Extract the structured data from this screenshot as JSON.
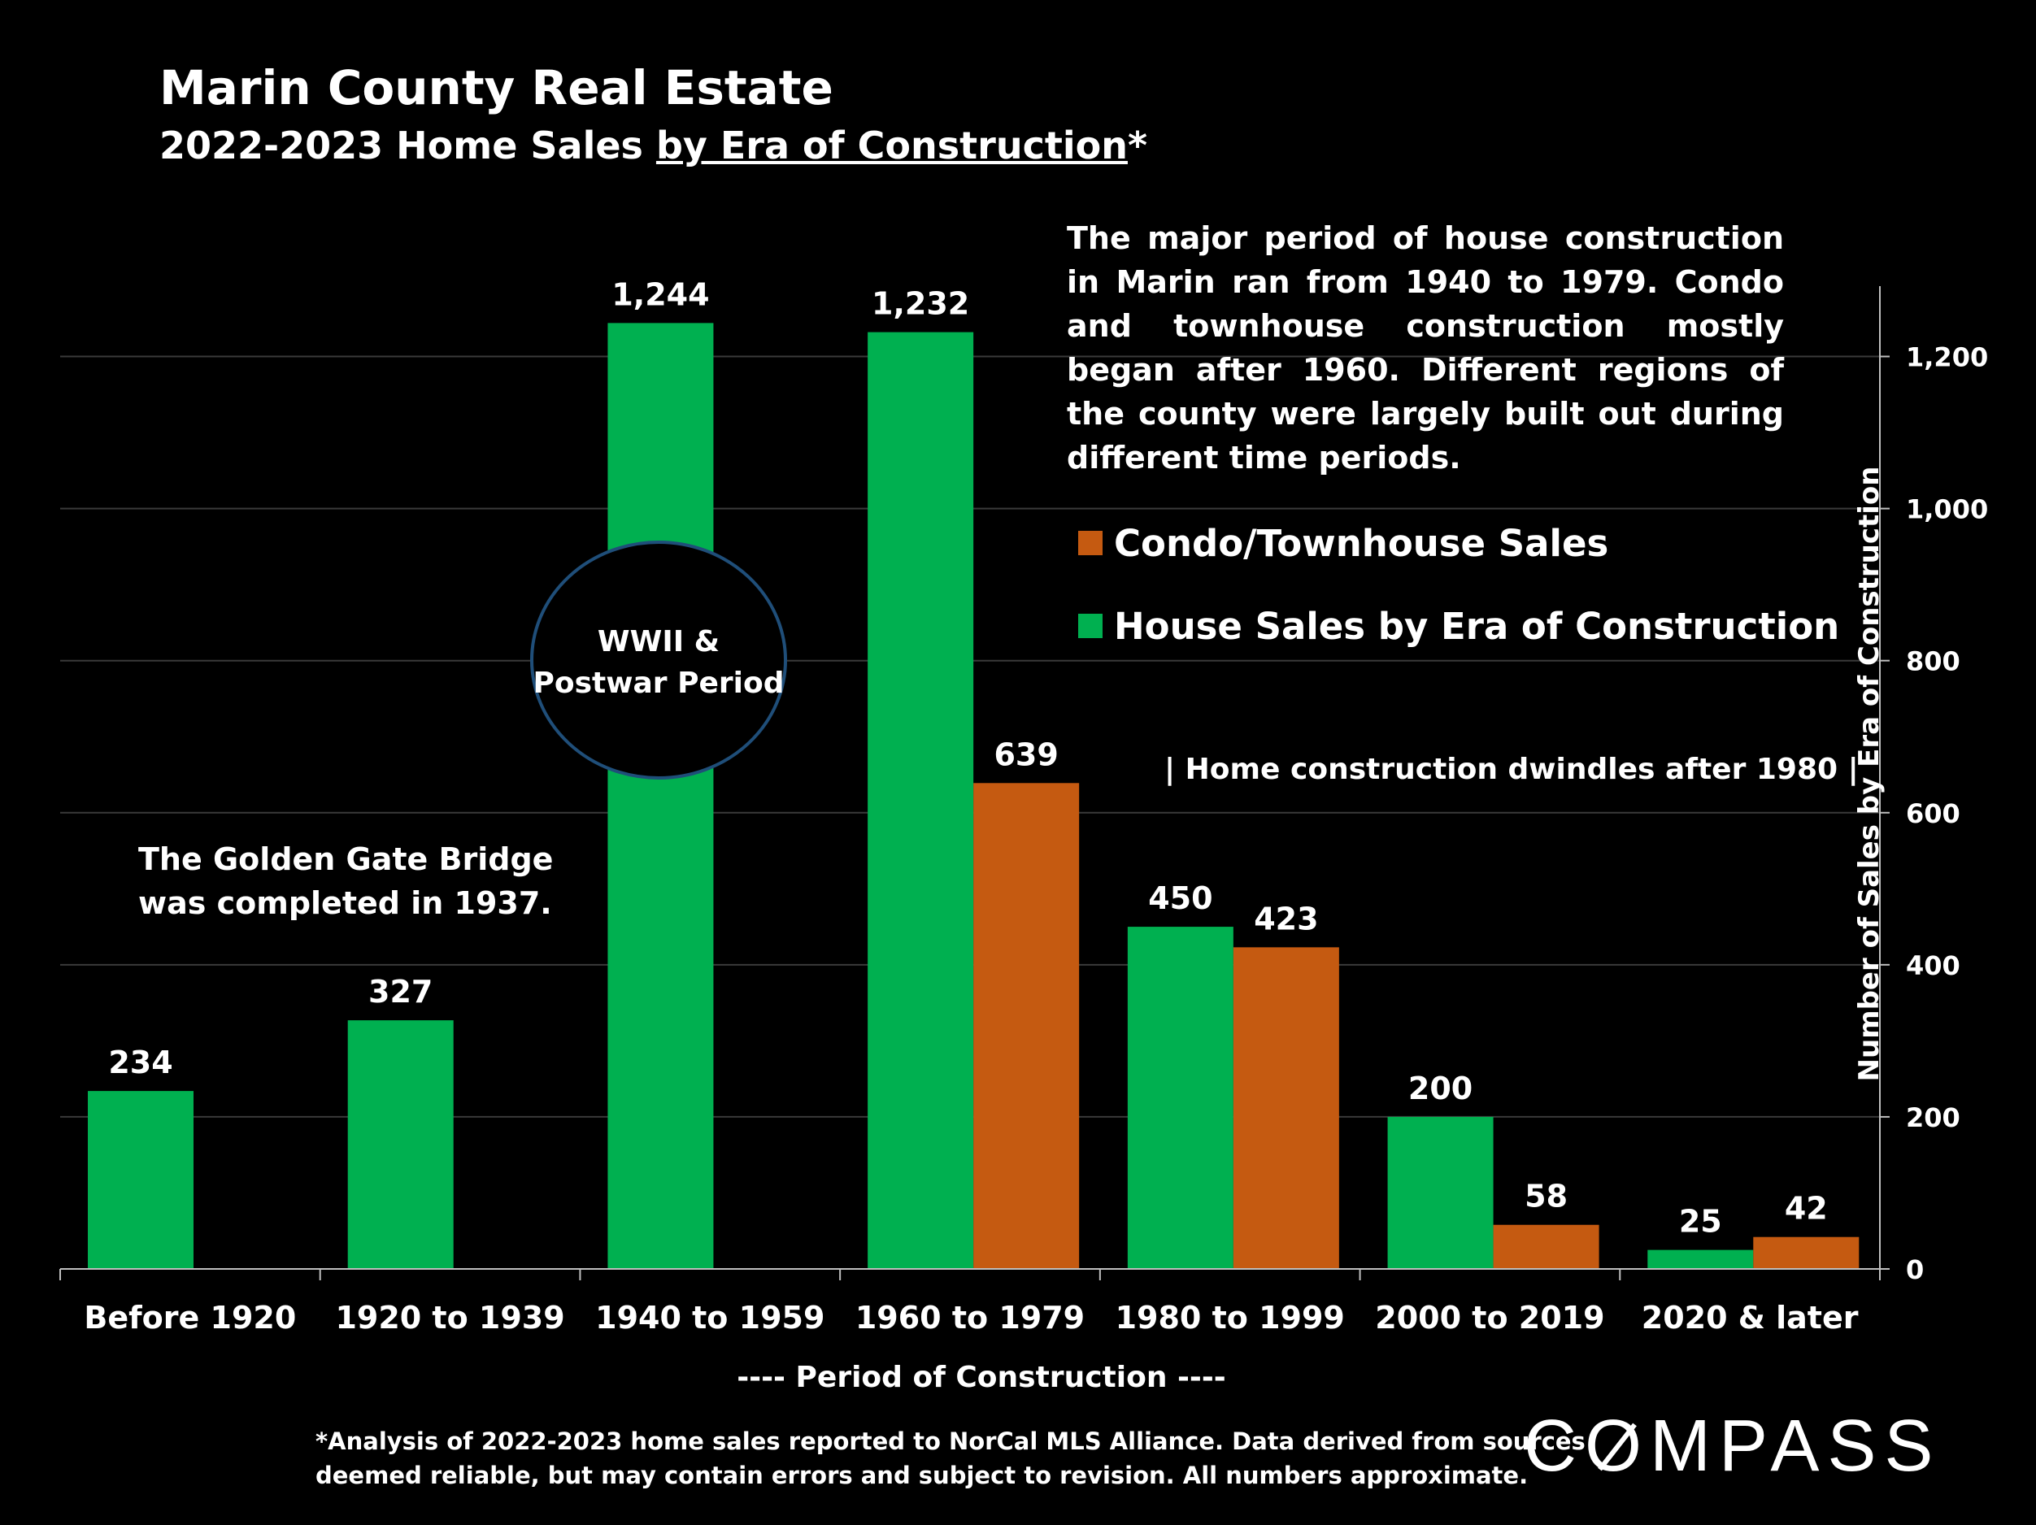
{
  "header": {
    "title": "Marin County Real Estate",
    "subtitle_prefix": "2022-2023 Home Sales ",
    "subtitle_underlined": "by Era of Construction",
    "subtitle_suffix": "*"
  },
  "annotations": {
    "main_note": "The major period of house construction in Marin ran from 1940 to 1979. Condo and townhouse construction mostly began after 1960. Different regions of the county were largely built out during different time periods.",
    "golden_gate_line1": "The Golden Gate Bridge",
    "golden_gate_line2": "was completed in 1937.",
    "wwii_line1": "WWII &",
    "wwii_line2": "Postwar Period",
    "dwindle": "| Home construction dwindles after 1980 |"
  },
  "footnote": {
    "line1": "*Analysis of 2022-2023 home sales reported to NorCal MLS Alliance.  Data derived from sources",
    "line2": "deemed reliable, but may contain errors and subject to revision. All numbers approximate."
  },
  "brand": {
    "before_o": "C",
    "o": "O",
    "after_o": "MPASS"
  },
  "colors": {
    "background": "#000000",
    "house": "#00b050",
    "condo": "#c55a11",
    "grid": "#3a3a3a",
    "circle_border": "#1f4e79"
  },
  "chart_data": {
    "type": "bar",
    "categories": [
      "Before 1920",
      "1920 to 1939",
      "1940 to 1959",
      "1960 to 1979",
      "1980 to 1999",
      "2000 to 2019",
      "2020 & later"
    ],
    "series": [
      {
        "name": "House Sales by Era of Construction",
        "values": [
          234,
          327,
          1244,
          1232,
          450,
          200,
          25
        ],
        "labels": [
          "234",
          "327",
          "1,244",
          "1,232",
          "450",
          "200",
          "25"
        ]
      },
      {
        "name": "Condo/Townhouse Sales",
        "values": [
          null,
          null,
          null,
          639,
          423,
          58,
          42
        ],
        "labels": [
          "",
          "",
          "",
          "639",
          "423",
          "58",
          "42"
        ]
      }
    ],
    "legend_order": [
      "Condo/Townhouse Sales",
      "House Sales by Era of Construction"
    ],
    "xlabel": "----  Period of Construction  ----",
    "ylabel": "Number of Sales by Era of Construction",
    "ylim": [
      0,
      1300
    ],
    "yticks": [
      0,
      200,
      400,
      600,
      800,
      1000,
      1200
    ],
    "ytick_labels": [
      "0",
      "200",
      "400",
      "600",
      "800",
      "1,000",
      "1,200"
    ],
    "y_axis_side": "right",
    "grid": true,
    "legend_position": "top-right"
  }
}
